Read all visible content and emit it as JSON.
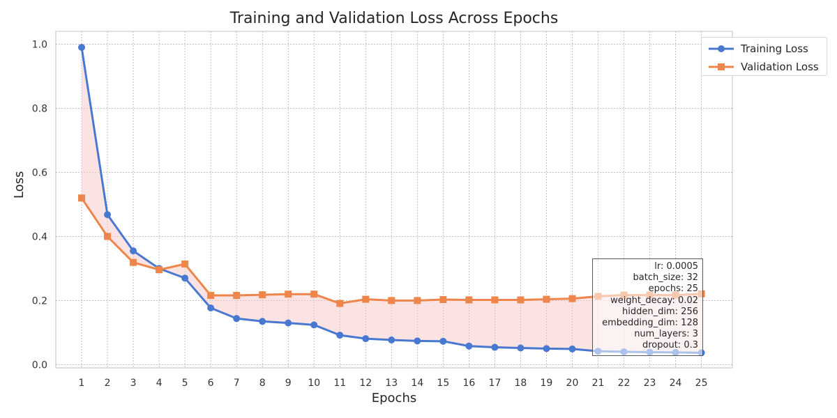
{
  "chart_data": {
    "type": "line",
    "title": "Training and Validation Loss Across Epochs",
    "xlabel": "Epochs",
    "ylabel": "Loss",
    "x": [
      1,
      2,
      3,
      4,
      5,
      6,
      7,
      8,
      9,
      10,
      11,
      12,
      13,
      14,
      15,
      16,
      17,
      18,
      19,
      20,
      21,
      22,
      23,
      24,
      25
    ],
    "xticks": [
      "1",
      "2",
      "3",
      "4",
      "5",
      "6",
      "7",
      "8",
      "9",
      "10",
      "11",
      "12",
      "13",
      "14",
      "15",
      "16",
      "17",
      "18",
      "19",
      "20",
      "21",
      "22",
      "23",
      "24",
      "25"
    ],
    "yticks": [
      "0.0",
      "0.2",
      "0.4",
      "0.6",
      "0.8",
      "1.0"
    ],
    "ylim": [
      -0.01,
      1.04
    ],
    "xlim": [
      0.0,
      26.2
    ],
    "grid": true,
    "legend_position": "top-right",
    "series": [
      {
        "name": "Training Loss",
        "color": "#4878d0",
        "marker": "circle",
        "values": [
          0.99,
          0.468,
          0.355,
          0.3,
          0.27,
          0.177,
          0.144,
          0.135,
          0.13,
          0.124,
          0.092,
          0.081,
          0.077,
          0.074,
          0.073,
          0.058,
          0.054,
          0.052,
          0.05,
          0.049,
          0.042,
          0.04,
          0.039,
          0.038,
          0.037
        ]
      },
      {
        "name": "Validation Loss",
        "color": "#ee854a",
        "marker": "square",
        "values": [
          0.52,
          0.4,
          0.319,
          0.296,
          0.314,
          0.216,
          0.216,
          0.218,
          0.22,
          0.22,
          0.191,
          0.204,
          0.2,
          0.2,
          0.203,
          0.202,
          0.202,
          0.202,
          0.204,
          0.206,
          0.213,
          0.217,
          0.217,
          0.217,
          0.221
        ]
      }
    ],
    "fill_between_color": "#f8c8c8",
    "annotation_lines": [
      "lr: 0.0005",
      "batch_size: 32",
      "epochs: 25",
      "weight_decay: 0.02",
      "hidden_dim: 256",
      "embedding_dim: 128",
      "num_layers: 3",
      "dropout: 0.3"
    ]
  }
}
